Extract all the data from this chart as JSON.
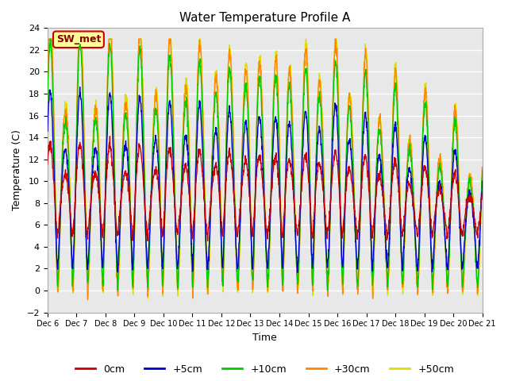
{
  "title": "Water Temperature Profile A",
  "xlabel": "Time",
  "ylabel": "Temperature (C)",
  "ylim": [
    -2,
    24
  ],
  "yticks": [
    -2,
    0,
    2,
    4,
    6,
    8,
    10,
    12,
    14,
    16,
    18,
    20,
    22,
    24
  ],
  "bg_color": "#d8d8d8",
  "plot_bg": "#e8e8e8",
  "legend_labels": [
    "0cm",
    "+5cm",
    "+10cm",
    "+30cm",
    "+50cm"
  ],
  "legend_colors": [
    "#cc0000",
    "#0000cc",
    "#00cc00",
    "#ff8800",
    "#dddd00"
  ],
  "annotation_text": "SW_met",
  "annotation_bg": "#ffff99",
  "annotation_border": "#cc0000",
  "x_tick_labels": [
    "Dec 6",
    "Dec 7",
    "Dec 8",
    "Dec 9",
    "Dec 10",
    "Dec 11",
    "Dec 12",
    "Dec 13",
    "Dec 14",
    "Dec 15",
    "Dec 16",
    "Dec 17",
    "Dec 18",
    "Dec 19",
    "Dec 20",
    "Dec 21"
  ],
  "n_days": 15
}
